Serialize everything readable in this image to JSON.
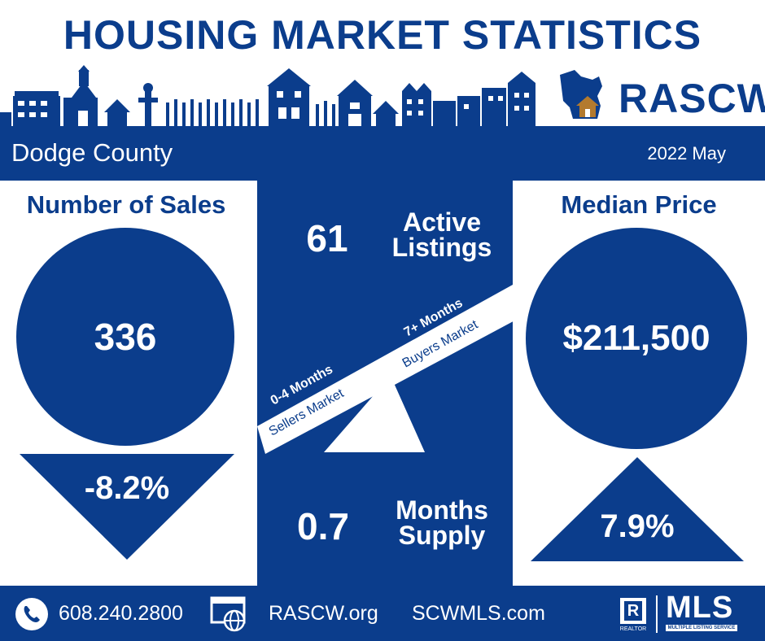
{
  "title": "HOUSING MARKET STATISTICS",
  "brand": {
    "name": "RASCW"
  },
  "county": "Dodge County",
  "period": "2022 May",
  "sales": {
    "label": "Number of Sales",
    "value": "336",
    "change": "-8.2%",
    "direction": "down"
  },
  "price": {
    "label": "Median Price",
    "value": "$211,500",
    "change": "7.9%",
    "direction": "up"
  },
  "listings": {
    "value": "61",
    "label_line1": "Active",
    "label_line2": "Listings"
  },
  "supply": {
    "value": "0.7",
    "label_line1": "Months",
    "label_line2": "Supply"
  },
  "scale": {
    "sellers_months": "0-4 Months",
    "sellers_label": "Sellers Market",
    "buyers_months": "7+ Months",
    "buyers_label": "Buyers Market"
  },
  "footer": {
    "phone": "608.240.2800",
    "site1": "RASCW.org",
    "site2": "SCWMLS.com",
    "realtor": "REALTOR",
    "mls": "MLS",
    "mls_sub": "MULTIPLE LISTING SERVICE"
  },
  "colors": {
    "navy": "#0b3d8c",
    "house_roof": "#b37a2e"
  },
  "icons": [
    "phone-icon",
    "web-icon",
    "realtor-logo",
    "mls-logo",
    "wisconsin-house-icon"
  ]
}
